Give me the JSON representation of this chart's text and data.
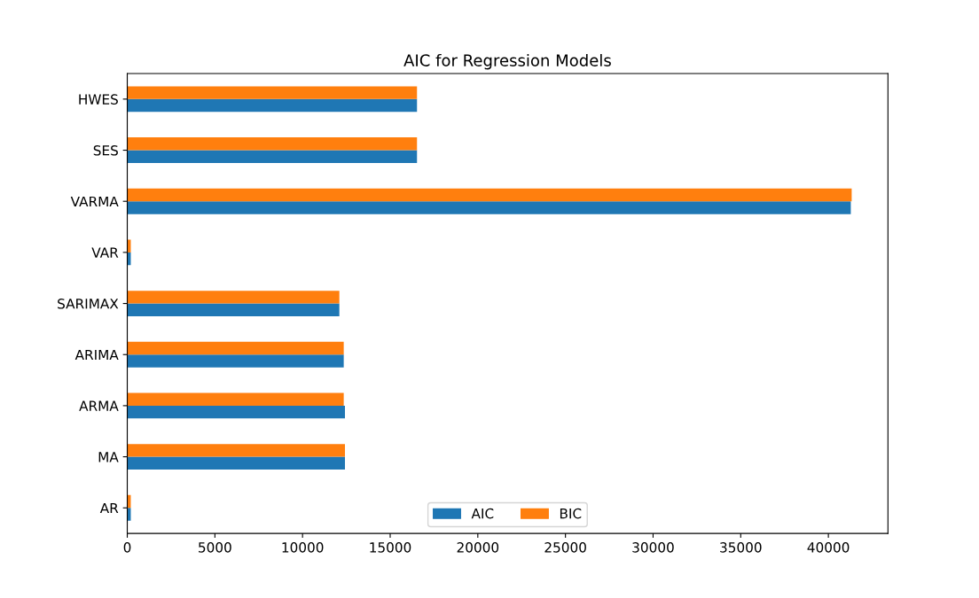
{
  "chart_data": {
    "type": "bar",
    "orientation": "horizontal",
    "title": "AIC for Regression Models",
    "categories": [
      "HWES",
      "SES",
      "VARMA",
      "VAR",
      "SARIMAX",
      "ARIMA",
      "ARMA",
      "MA",
      "AR"
    ],
    "series": [
      {
        "name": "AIC",
        "color": "#1f77b4",
        "values": [
          16530,
          16530,
          41280,
          200,
          12100,
          12350,
          12420,
          12420,
          200
        ]
      },
      {
        "name": "BIC",
        "color": "#ff7f0e",
        "values": [
          16530,
          16530,
          41330,
          200,
          12100,
          12350,
          12350,
          12420,
          200
        ]
      }
    ],
    "xlim": [
      0,
      43400
    ],
    "xticks": [
      0,
      5000,
      10000,
      15000,
      20000,
      25000,
      30000,
      35000,
      40000
    ],
    "legend": "bottom",
    "grid": false
  }
}
